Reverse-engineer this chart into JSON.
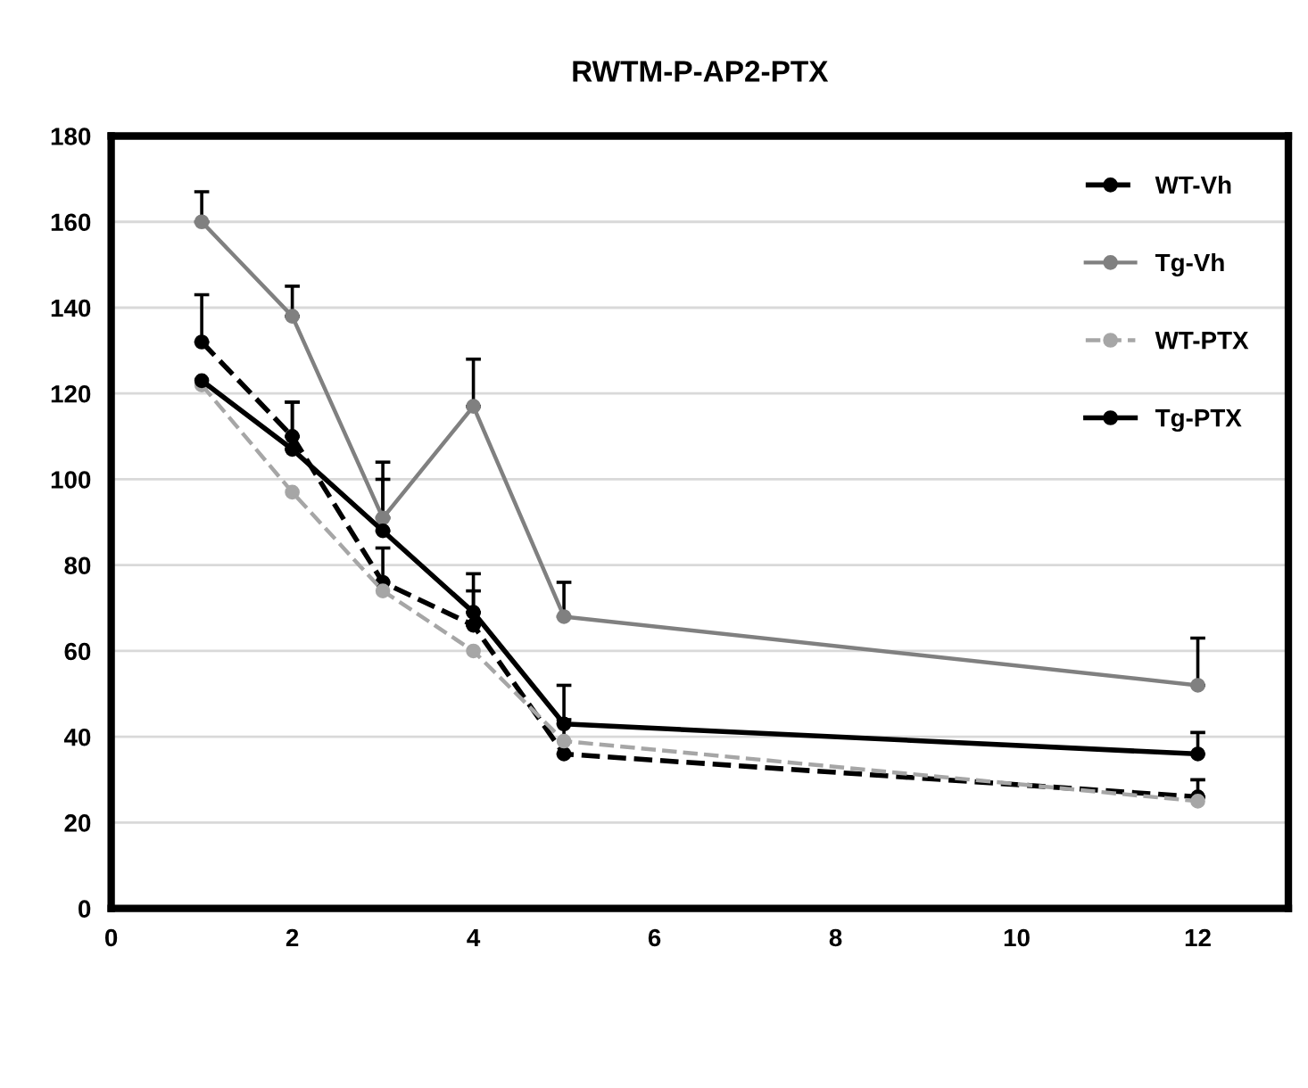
{
  "chart_data": {
    "type": "line",
    "title": "RWTM-P-AP2-PTX",
    "x": [
      1,
      2,
      3,
      4,
      5,
      12
    ],
    "series": [
      {
        "name": "WT-Vh",
        "color": "#000000",
        "line_style": "dashed",
        "values": [
          132,
          110,
          76,
          66,
          36,
          26
        ],
        "errors": [
          [
            132,
            143
          ],
          [
            110,
            118
          ],
          [
            76,
            84
          ],
          [
            66,
            74
          ],
          [
            36,
            44
          ],
          [
            26,
            30
          ]
        ]
      },
      {
        "name": "Tg-Vh",
        "color": "#808080",
        "line_style": "solid",
        "values": [
          160,
          138,
          91,
          117,
          68,
          52
        ],
        "errors": [
          [
            160,
            167
          ],
          [
            138,
            145
          ],
          [
            91,
            104
          ],
          [
            117,
            128
          ],
          [
            68,
            76
          ],
          [
            52,
            63
          ]
        ]
      },
      {
        "name": "WT-PTX",
        "color": "#a6a6a6",
        "line_style": "dashed",
        "values": [
          122,
          97,
          74,
          60,
          39,
          25
        ]
      },
      {
        "name": "Tg-PTX",
        "color": "#000000",
        "line_style": "solid",
        "values": [
          123,
          107,
          88,
          69,
          43,
          36
        ],
        "errors": [
          null,
          [
            107,
            118
          ],
          [
            88,
            100
          ],
          [
            69,
            78
          ],
          [
            43,
            52
          ],
          [
            36,
            41
          ]
        ]
      }
    ],
    "xlim": [
      0,
      13
    ],
    "xticks": [
      0,
      2,
      4,
      6,
      8,
      10,
      12
    ],
    "ylim": [
      0,
      180
    ],
    "yticks": [
      0,
      20,
      40,
      60,
      80,
      100,
      120,
      140,
      160,
      180
    ],
    "grid": "y",
    "legend": "top right",
    "marker": "circle"
  }
}
